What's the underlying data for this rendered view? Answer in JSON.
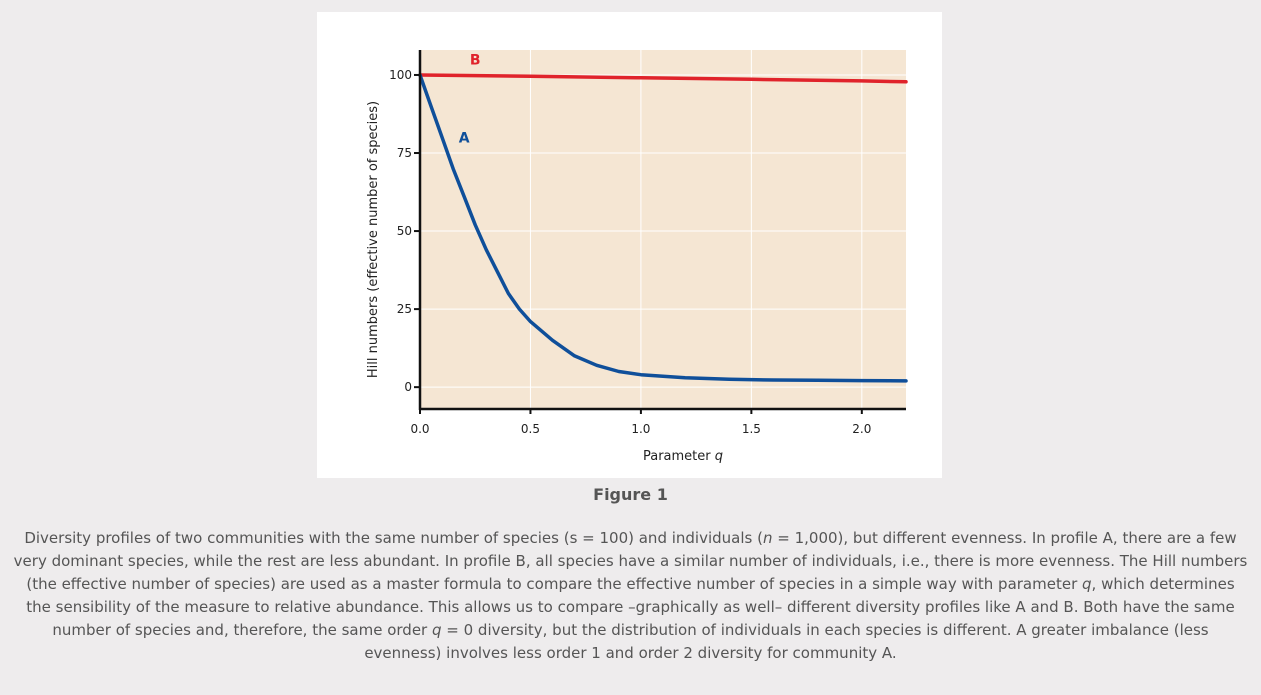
{
  "chart_data": {
    "type": "line",
    "title": "",
    "xlabel_text": "Parameter",
    "xlabel_var": "q",
    "ylabel": "Hill numbers (effective number of species)",
    "xlim": [
      0.0,
      2.2
    ],
    "ylim": [
      -7,
      108
    ],
    "x_ticks": [
      {
        "value": 0.0,
        "label": "0.0"
      },
      {
        "value": 0.5,
        "label": "0.5"
      },
      {
        "value": 1.0,
        "label": "1.0"
      },
      {
        "value": 1.5,
        "label": "1.5"
      },
      {
        "value": 2.0,
        "label": "2.0"
      }
    ],
    "y_ticks": [
      {
        "value": 0,
        "label": "0"
      },
      {
        "value": 25,
        "label": "25"
      },
      {
        "value": 50,
        "label": "50"
      },
      {
        "value": 75,
        "label": "75"
      },
      {
        "value": 100,
        "label": "100"
      }
    ],
    "grid": true,
    "plot_background": "#f5e6d3",
    "series": [
      {
        "name": "A",
        "color": "#0f4f9a",
        "label_at": {
          "x": 0.2,
          "y": 80
        },
        "x": [
          0.0,
          0.05,
          0.1,
          0.15,
          0.2,
          0.25,
          0.3,
          0.35,
          0.4,
          0.45,
          0.5,
          0.6,
          0.7,
          0.8,
          0.9,
          1.0,
          1.2,
          1.4,
          1.6,
          1.8,
          2.0,
          2.2
        ],
        "y": [
          100,
          90,
          80,
          70,
          61,
          52,
          44,
          37,
          30,
          25,
          21,
          15,
          10,
          7,
          5,
          4,
          3,
          2.5,
          2.3,
          2.2,
          2.1,
          2
        ]
      },
      {
        "name": "B",
        "color": "#e0232b",
        "label_at": {
          "x": 0.25,
          "y": 105
        },
        "x": [
          0.0,
          0.5,
          1.0,
          1.5,
          2.0,
          2.2
        ],
        "y": [
          100,
          99.6,
          99.1,
          98.6,
          98.1,
          97.8
        ]
      }
    ]
  },
  "figure": {
    "title": "Figure 1",
    "caption_html": "Diversity profiles of two communities with the same number of species (s = 100) and individuals (<i>n</i> = 1,000), but different evenness. In profile A, there are a few very dominant species, while the rest are less abundant. In profile B, all species have a similar number of individuals, i.e., there is more evenness. The Hill numbers (the effective number of species) are used as a master formula to compare the effective number of species in a simple way with parameter <i>q</i>, which determines the sensibility of the measure to relative abundance. This allows us to compare –graphically as well– different diversity profiles like A and B. Both have the same number of species and, therefore, the same order <i>q</i> = 0 diversity, but the distribution of individuals in each species is different. A greater imbalance (less evenness) involves less order 1 and order 2 diversity for community A."
  }
}
